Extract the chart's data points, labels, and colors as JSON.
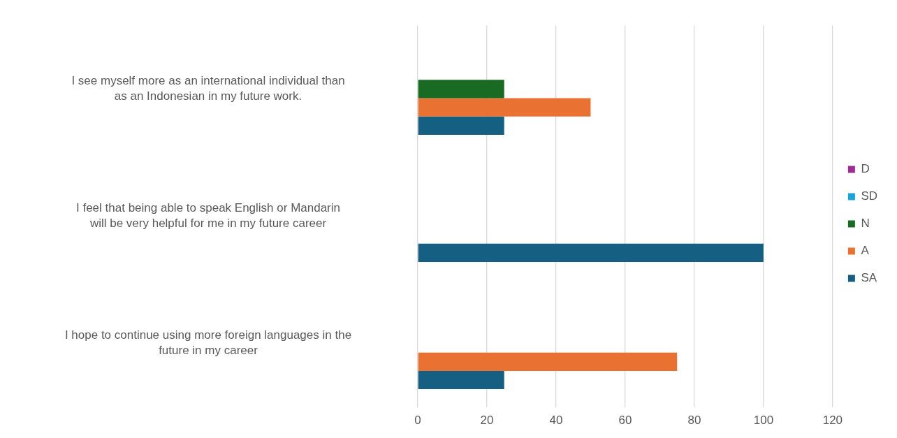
{
  "chart_data": {
    "type": "bar",
    "orientation": "horizontal",
    "categories": [
      "I see myself more as an international individual than as an Indonesian in my future work.",
      "I feel that being able to speak English or Mandarin will be very helpful for me in my future career",
      "I hope to continue using more foreign languages in the future in my career"
    ],
    "series": [
      {
        "name": "D",
        "color": "#a02b93",
        "values": [
          null,
          null,
          null
        ]
      },
      {
        "name": "SD",
        "color": "#1aa3d9",
        "values": [
          null,
          null,
          null
        ]
      },
      {
        "name": "N",
        "color": "#196b24",
        "values": [
          25,
          null,
          null
        ]
      },
      {
        "name": "A",
        "color": "#e97132",
        "values": [
          50,
          null,
          75
        ]
      },
      {
        "name": "SA",
        "color": "#156082",
        "values": [
          25,
          100,
          25
        ]
      }
    ],
    "xlim": [
      0,
      120
    ],
    "xticks": [
      0,
      20,
      40,
      60,
      80,
      100,
      120
    ],
    "grid": "x",
    "legend": "right"
  }
}
